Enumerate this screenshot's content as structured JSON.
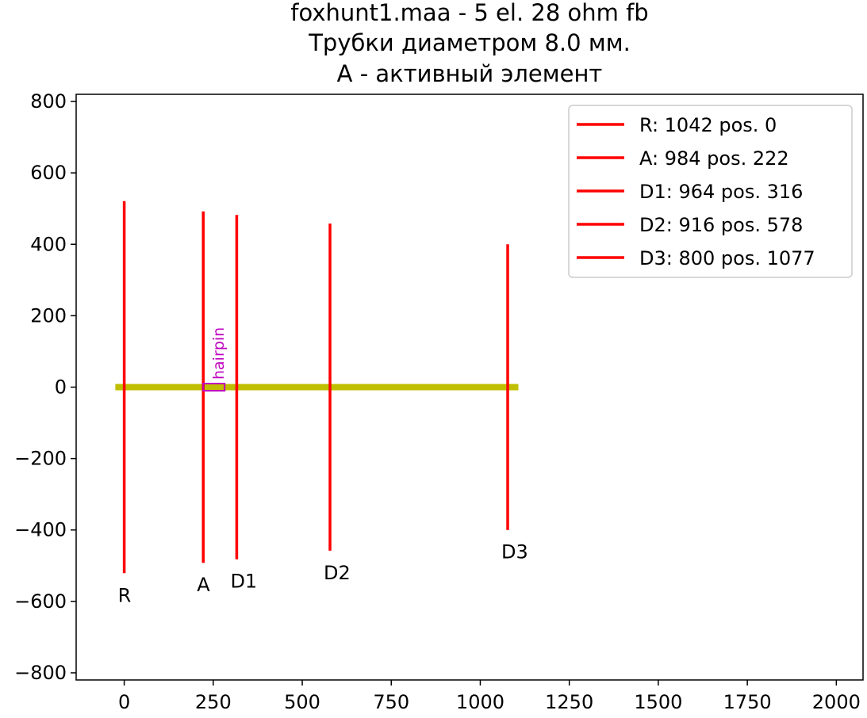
{
  "chart_data": {
    "type": "line",
    "title_lines": [
      "foxhunt1.maa - 5 el. 28 ohm fb",
      "Трубки диаметром 8.0 мм.",
      "A - активный элемент"
    ],
    "xlabel": "",
    "ylabel": "",
    "xlim": [
      -135,
      2075
    ],
    "ylim": [
      -820,
      820
    ],
    "x_ticks": [
      0,
      250,
      500,
      750,
      1000,
      1250,
      1500,
      1750,
      2000
    ],
    "x_tick_labels": [
      "0",
      "250",
      "500",
      "750",
      "1000",
      "1250",
      "1500",
      "1750",
      "2000"
    ],
    "y_ticks": [
      800,
      600,
      400,
      200,
      0,
      -200,
      -400,
      -600,
      -800
    ],
    "y_tick_labels": [
      "800",
      "600",
      "400",
      "200",
      "0",
      "−200",
      "−400",
      "−600",
      "−800"
    ],
    "grid": false,
    "legend_position": "top-right",
    "boom": {
      "x_start": -25,
      "x_end": 1107,
      "y": 0,
      "color": "#bfbf00"
    },
    "hairpin": {
      "label": "hairpin",
      "x_start": 222,
      "x_end": 282,
      "y_top": 10,
      "y_bottom": -10,
      "color": "#bf00bf"
    },
    "element_color": "#ff0000",
    "series": [
      {
        "name": "R: 1042 pos. 0",
        "label": "R",
        "position": 0,
        "length": 1042
      },
      {
        "name": "A: 984 pos. 222",
        "label": "A",
        "position": 222,
        "length": 984
      },
      {
        "name": "D1: 964 pos. 316",
        "label": "D1",
        "position": 316,
        "length": 964
      },
      {
        "name": "D2: 916 pos. 578",
        "label": "D2",
        "position": 578,
        "length": 916
      },
      {
        "name": "D3: 800 pos. 1077",
        "label": "D3",
        "position": 1077,
        "length": 800
      }
    ]
  }
}
